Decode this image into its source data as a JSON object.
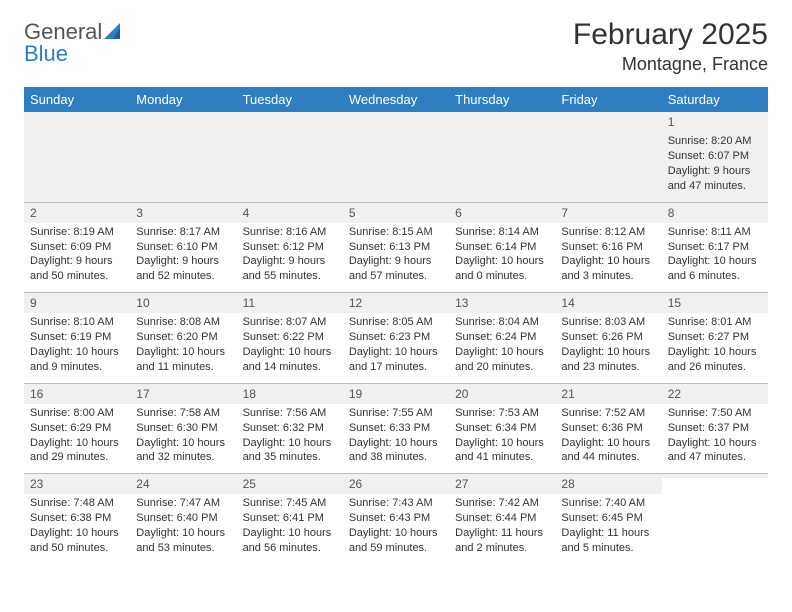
{
  "logo": {
    "text1": "General",
    "text2": "Blue"
  },
  "title": "February 2025",
  "location": "Montagne, France",
  "colors": {
    "header_bg": "#2f7ebf",
    "header_fg": "#ffffff",
    "text": "#333333",
    "muted": "#555555",
    "rule": "#bfbfbf",
    "shade": "#f0f0f0",
    "page_bg": "#ffffff"
  },
  "typography": {
    "month_title_size_pt": 22,
    "location_size_pt": 13,
    "header_cell_size_pt": 10,
    "body_cell_size_pt": 8,
    "daynum_size_pt": 9
  },
  "weekday_labels": [
    "Sunday",
    "Monday",
    "Tuesday",
    "Wednesday",
    "Thursday",
    "Friday",
    "Saturday"
  ],
  "weeks": [
    [
      {
        "day": "",
        "sunrise": "",
        "sunset": "",
        "daylight": ""
      },
      {
        "day": "",
        "sunrise": "",
        "sunset": "",
        "daylight": ""
      },
      {
        "day": "",
        "sunrise": "",
        "sunset": "",
        "daylight": ""
      },
      {
        "day": "",
        "sunrise": "",
        "sunset": "",
        "daylight": ""
      },
      {
        "day": "",
        "sunrise": "",
        "sunset": "",
        "daylight": ""
      },
      {
        "day": "",
        "sunrise": "",
        "sunset": "",
        "daylight": ""
      },
      {
        "day": "1",
        "sunrise": "Sunrise: 8:20 AM",
        "sunset": "Sunset: 6:07 PM",
        "daylight": "Daylight: 9 hours and 47 minutes."
      }
    ],
    [
      {
        "day": "2",
        "sunrise": "Sunrise: 8:19 AM",
        "sunset": "Sunset: 6:09 PM",
        "daylight": "Daylight: 9 hours and 50 minutes."
      },
      {
        "day": "3",
        "sunrise": "Sunrise: 8:17 AM",
        "sunset": "Sunset: 6:10 PM",
        "daylight": "Daylight: 9 hours and 52 minutes."
      },
      {
        "day": "4",
        "sunrise": "Sunrise: 8:16 AM",
        "sunset": "Sunset: 6:12 PM",
        "daylight": "Daylight: 9 hours and 55 minutes."
      },
      {
        "day": "5",
        "sunrise": "Sunrise: 8:15 AM",
        "sunset": "Sunset: 6:13 PM",
        "daylight": "Daylight: 9 hours and 57 minutes."
      },
      {
        "day": "6",
        "sunrise": "Sunrise: 8:14 AM",
        "sunset": "Sunset: 6:14 PM",
        "daylight": "Daylight: 10 hours and 0 minutes."
      },
      {
        "day": "7",
        "sunrise": "Sunrise: 8:12 AM",
        "sunset": "Sunset: 6:16 PM",
        "daylight": "Daylight: 10 hours and 3 minutes."
      },
      {
        "day": "8",
        "sunrise": "Sunrise: 8:11 AM",
        "sunset": "Sunset: 6:17 PM",
        "daylight": "Daylight: 10 hours and 6 minutes."
      }
    ],
    [
      {
        "day": "9",
        "sunrise": "Sunrise: 8:10 AM",
        "sunset": "Sunset: 6:19 PM",
        "daylight": "Daylight: 10 hours and 9 minutes."
      },
      {
        "day": "10",
        "sunrise": "Sunrise: 8:08 AM",
        "sunset": "Sunset: 6:20 PM",
        "daylight": "Daylight: 10 hours and 11 minutes."
      },
      {
        "day": "11",
        "sunrise": "Sunrise: 8:07 AM",
        "sunset": "Sunset: 6:22 PM",
        "daylight": "Daylight: 10 hours and 14 minutes."
      },
      {
        "day": "12",
        "sunrise": "Sunrise: 8:05 AM",
        "sunset": "Sunset: 6:23 PM",
        "daylight": "Daylight: 10 hours and 17 minutes."
      },
      {
        "day": "13",
        "sunrise": "Sunrise: 8:04 AM",
        "sunset": "Sunset: 6:24 PM",
        "daylight": "Daylight: 10 hours and 20 minutes."
      },
      {
        "day": "14",
        "sunrise": "Sunrise: 8:03 AM",
        "sunset": "Sunset: 6:26 PM",
        "daylight": "Daylight: 10 hours and 23 minutes."
      },
      {
        "day": "15",
        "sunrise": "Sunrise: 8:01 AM",
        "sunset": "Sunset: 6:27 PM",
        "daylight": "Daylight: 10 hours and 26 minutes."
      }
    ],
    [
      {
        "day": "16",
        "sunrise": "Sunrise: 8:00 AM",
        "sunset": "Sunset: 6:29 PM",
        "daylight": "Daylight: 10 hours and 29 minutes."
      },
      {
        "day": "17",
        "sunrise": "Sunrise: 7:58 AM",
        "sunset": "Sunset: 6:30 PM",
        "daylight": "Daylight: 10 hours and 32 minutes."
      },
      {
        "day": "18",
        "sunrise": "Sunrise: 7:56 AM",
        "sunset": "Sunset: 6:32 PM",
        "daylight": "Daylight: 10 hours and 35 minutes."
      },
      {
        "day": "19",
        "sunrise": "Sunrise: 7:55 AM",
        "sunset": "Sunset: 6:33 PM",
        "daylight": "Daylight: 10 hours and 38 minutes."
      },
      {
        "day": "20",
        "sunrise": "Sunrise: 7:53 AM",
        "sunset": "Sunset: 6:34 PM",
        "daylight": "Daylight: 10 hours and 41 minutes."
      },
      {
        "day": "21",
        "sunrise": "Sunrise: 7:52 AM",
        "sunset": "Sunset: 6:36 PM",
        "daylight": "Daylight: 10 hours and 44 minutes."
      },
      {
        "day": "22",
        "sunrise": "Sunrise: 7:50 AM",
        "sunset": "Sunset: 6:37 PM",
        "daylight": "Daylight: 10 hours and 47 minutes."
      }
    ],
    [
      {
        "day": "23",
        "sunrise": "Sunrise: 7:48 AM",
        "sunset": "Sunset: 6:38 PM",
        "daylight": "Daylight: 10 hours and 50 minutes."
      },
      {
        "day": "24",
        "sunrise": "Sunrise: 7:47 AM",
        "sunset": "Sunset: 6:40 PM",
        "daylight": "Daylight: 10 hours and 53 minutes."
      },
      {
        "day": "25",
        "sunrise": "Sunrise: 7:45 AM",
        "sunset": "Sunset: 6:41 PM",
        "daylight": "Daylight: 10 hours and 56 minutes."
      },
      {
        "day": "26",
        "sunrise": "Sunrise: 7:43 AM",
        "sunset": "Sunset: 6:43 PM",
        "daylight": "Daylight: 10 hours and 59 minutes."
      },
      {
        "day": "27",
        "sunrise": "Sunrise: 7:42 AM",
        "sunset": "Sunset: 6:44 PM",
        "daylight": "Daylight: 11 hours and 2 minutes."
      },
      {
        "day": "28",
        "sunrise": "Sunrise: 7:40 AM",
        "sunset": "Sunset: 6:45 PM",
        "daylight": "Daylight: 11 hours and 5 minutes."
      },
      {
        "day": "",
        "sunrise": "",
        "sunset": "",
        "daylight": ""
      }
    ]
  ]
}
